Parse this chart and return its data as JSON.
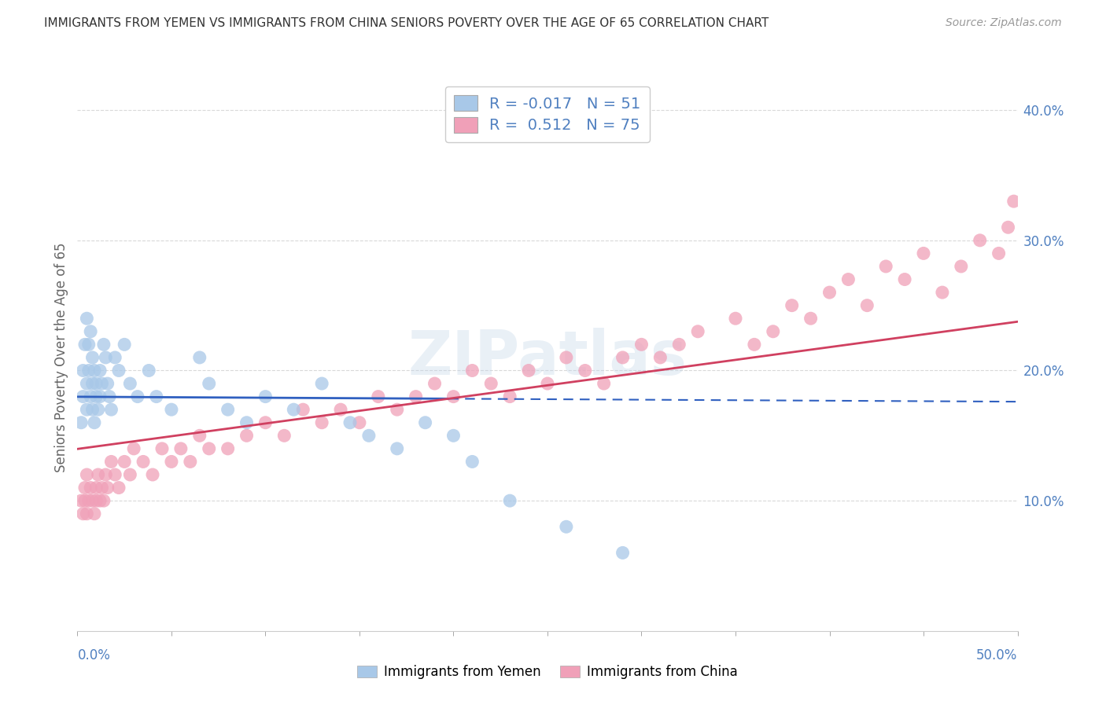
{
  "title": "IMMIGRANTS FROM YEMEN VS IMMIGRANTS FROM CHINA SENIORS POVERTY OVER THE AGE OF 65 CORRELATION CHART",
  "source": "Source: ZipAtlas.com",
  "ylabel": "Seniors Poverty Over the Age of 65",
  "xmin": 0.0,
  "xmax": 0.5,
  "ymin": 0.0,
  "ymax": 0.42,
  "yticks": [
    0.1,
    0.2,
    0.3,
    0.4
  ],
  "ytick_labels": [
    "10.0%",
    "20.0%",
    "30.0%",
    "40.0%"
  ],
  "legend_r_yemen": "-0.017",
  "legend_n_yemen": "51",
  "legend_r_china": "0.512",
  "legend_n_china": "75",
  "watermark": "ZIPatlas",
  "color_yemen": "#a8c8e8",
  "color_china": "#f0a0b8",
  "line_color_yemen": "#3060c0",
  "line_color_china": "#d04060",
  "background_color": "#ffffff",
  "grid_color": "#d0d0d0",
  "tick_color": "#5080c0",
  "yemen_x": [
    0.002,
    0.003,
    0.003,
    0.004,
    0.005,
    0.005,
    0.005,
    0.006,
    0.006,
    0.007,
    0.007,
    0.008,
    0.008,
    0.008,
    0.009,
    0.009,
    0.01,
    0.01,
    0.011,
    0.012,
    0.012,
    0.013,
    0.014,
    0.015,
    0.016,
    0.017,
    0.018,
    0.02,
    0.022,
    0.025,
    0.028,
    0.032,
    0.038,
    0.042,
    0.05,
    0.065,
    0.07,
    0.08,
    0.09,
    0.1,
    0.115,
    0.13,
    0.145,
    0.155,
    0.17,
    0.185,
    0.2,
    0.21,
    0.23,
    0.26,
    0.29
  ],
  "yemen_y": [
    0.16,
    0.18,
    0.2,
    0.22,
    0.24,
    0.19,
    0.17,
    0.22,
    0.2,
    0.23,
    0.18,
    0.21,
    0.17,
    0.19,
    0.16,
    0.2,
    0.19,
    0.18,
    0.17,
    0.2,
    0.18,
    0.19,
    0.22,
    0.21,
    0.19,
    0.18,
    0.17,
    0.21,
    0.2,
    0.22,
    0.19,
    0.18,
    0.2,
    0.18,
    0.17,
    0.21,
    0.19,
    0.17,
    0.16,
    0.18,
    0.17,
    0.19,
    0.16,
    0.15,
    0.14,
    0.16,
    0.15,
    0.13,
    0.1,
    0.08,
    0.06
  ],
  "china_x": [
    0.002,
    0.003,
    0.004,
    0.004,
    0.005,
    0.005,
    0.006,
    0.007,
    0.008,
    0.009,
    0.01,
    0.01,
    0.011,
    0.012,
    0.013,
    0.014,
    0.015,
    0.016,
    0.018,
    0.02,
    0.022,
    0.025,
    0.028,
    0.03,
    0.035,
    0.04,
    0.045,
    0.05,
    0.055,
    0.06,
    0.065,
    0.07,
    0.08,
    0.09,
    0.1,
    0.11,
    0.12,
    0.13,
    0.14,
    0.15,
    0.16,
    0.17,
    0.18,
    0.19,
    0.2,
    0.21,
    0.22,
    0.23,
    0.24,
    0.25,
    0.26,
    0.27,
    0.28,
    0.29,
    0.3,
    0.31,
    0.32,
    0.33,
    0.35,
    0.36,
    0.37,
    0.38,
    0.39,
    0.4,
    0.41,
    0.42,
    0.43,
    0.44,
    0.45,
    0.46,
    0.47,
    0.48,
    0.49,
    0.495,
    0.498
  ],
  "china_y": [
    0.1,
    0.09,
    0.11,
    0.1,
    0.12,
    0.09,
    0.1,
    0.11,
    0.1,
    0.09,
    0.11,
    0.1,
    0.12,
    0.1,
    0.11,
    0.1,
    0.12,
    0.11,
    0.13,
    0.12,
    0.11,
    0.13,
    0.12,
    0.14,
    0.13,
    0.12,
    0.14,
    0.13,
    0.14,
    0.13,
    0.15,
    0.14,
    0.14,
    0.15,
    0.16,
    0.15,
    0.17,
    0.16,
    0.17,
    0.16,
    0.18,
    0.17,
    0.18,
    0.19,
    0.18,
    0.2,
    0.19,
    0.18,
    0.2,
    0.19,
    0.21,
    0.2,
    0.19,
    0.21,
    0.22,
    0.21,
    0.22,
    0.23,
    0.24,
    0.22,
    0.23,
    0.25,
    0.24,
    0.26,
    0.27,
    0.25,
    0.28,
    0.27,
    0.29,
    0.26,
    0.28,
    0.3,
    0.29,
    0.31,
    0.33
  ]
}
